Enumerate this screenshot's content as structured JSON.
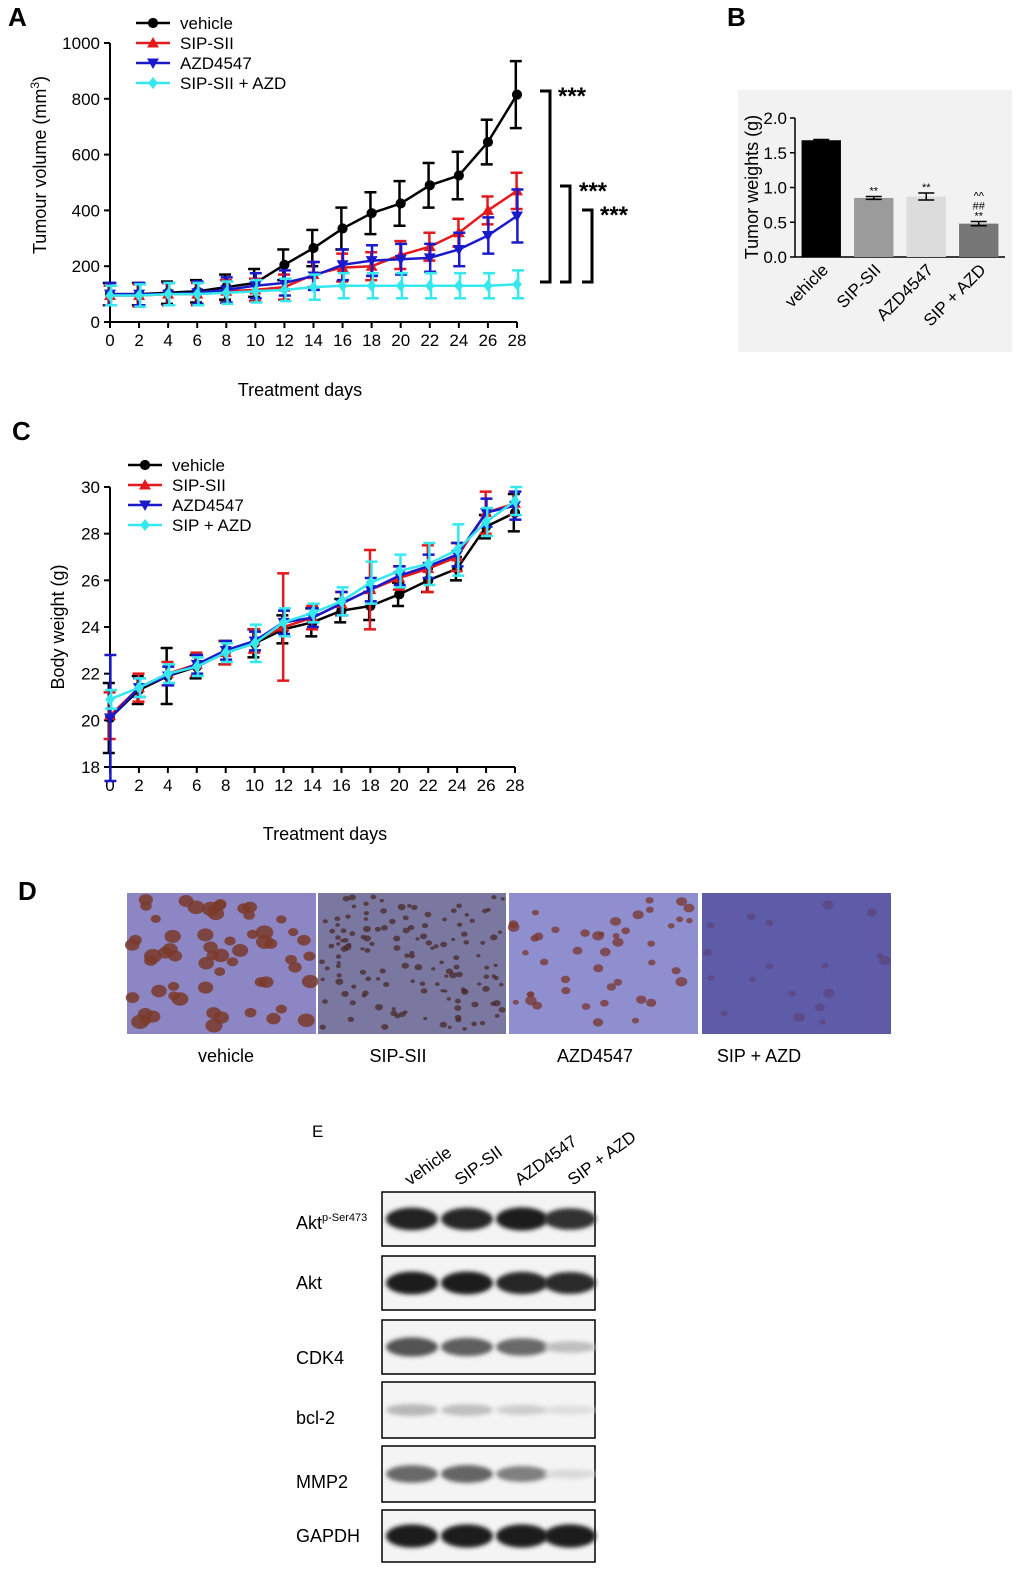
{
  "panels": {
    "A": "A",
    "B": "B",
    "C": "C",
    "D": "D",
    "E": "E"
  },
  "chart_data": [
    {
      "id": "A",
      "type": "line",
      "title": "",
      "xlabel": "Treatment days",
      "ylabel": "Tumour volume (mm",
      "ylabel_sup": "3",
      "ylabel_end": ")",
      "xlim": [
        0,
        28
      ],
      "ylim": [
        0,
        1000
      ],
      "x": [
        0,
        2,
        4,
        6,
        8,
        10,
        12,
        14,
        16,
        18,
        20,
        22,
        24,
        26,
        28
      ],
      "xticks": [
        "0",
        "2",
        "4",
        "6",
        "8",
        "10",
        "12",
        "14",
        "16",
        "18",
        "20",
        "22",
        "24",
        "26",
        "28"
      ],
      "yticks": [
        "0",
        "200",
        "400",
        "600",
        "800",
        "1000"
      ],
      "legend_position": "top-left",
      "series": [
        {
          "name": "vehicle",
          "color": "#000000",
          "marker": "circle",
          "values": [
            100,
            100,
            105,
            110,
            125,
            140,
            205,
            265,
            335,
            390,
            425,
            490,
            525,
            645,
            815
          ],
          "errors": [
            40,
            40,
            40,
            40,
            45,
            50,
            55,
            65,
            75,
            75,
            80,
            80,
            85,
            80,
            120
          ]
        },
        {
          "name": "SIP-SII",
          "color": "#e3191c",
          "marker": "triangle-up",
          "values": [
            95,
            95,
            100,
            100,
            110,
            115,
            125,
            170,
            195,
            200,
            240,
            270,
            320,
            400,
            470
          ],
          "errors": [
            35,
            40,
            40,
            40,
            40,
            40,
            45,
            45,
            50,
            50,
            50,
            50,
            50,
            50,
            65
          ]
        },
        {
          "name": "AZD4547",
          "color": "#1a1acc",
          "marker": "triangle-down",
          "values": [
            100,
            100,
            100,
            105,
            115,
            130,
            140,
            165,
            205,
            220,
            225,
            230,
            260,
            310,
            380
          ],
          "errors": [
            40,
            40,
            40,
            40,
            45,
            45,
            45,
            50,
            55,
            55,
            55,
            50,
            60,
            65,
            95
          ]
        },
        {
          "name": "SIP-SII + AZD",
          "color": "#35e8ee",
          "marker": "diamond",
          "values": [
            95,
            95,
            100,
            100,
            105,
            110,
            115,
            125,
            130,
            130,
            130,
            130,
            130,
            130,
            135
          ],
          "errors": [
            35,
            40,
            40,
            40,
            40,
            40,
            40,
            45,
            45,
            45,
            45,
            45,
            45,
            45,
            50
          ]
        }
      ],
      "significance": [
        "***",
        "***",
        "***"
      ]
    },
    {
      "id": "B",
      "type": "bar",
      "title": "",
      "xlabel": "",
      "ylabel": "Tumor weights (g)",
      "ylim": [
        0,
        2.0
      ],
      "yticks": [
        "0.0",
        "0.5",
        "1.0",
        "1.5",
        "2.0"
      ],
      "categories": [
        "vehicle",
        "SIP-SII",
        "AZD4547",
        "SIP + AZD"
      ],
      "values": [
        1.68,
        0.85,
        0.87,
        0.48
      ],
      "errors": [
        0.01,
        0.02,
        0.05,
        0.03
      ],
      "colors": [
        "#000000",
        "#9b9b9b",
        "#dcdcdc",
        "#777777"
      ],
      "annotations": [
        [],
        [
          "**"
        ],
        [
          "**"
        ],
        [
          "**",
          "##",
          "^^"
        ]
      ]
    },
    {
      "id": "C",
      "type": "line",
      "title": "",
      "xlabel": "Treatment days",
      "ylabel": "Body weight (g)",
      "xlim": [
        0,
        28
      ],
      "ylim": [
        18,
        30
      ],
      "x": [
        0,
        2,
        4,
        6,
        8,
        10,
        12,
        14,
        16,
        18,
        20,
        22,
        24,
        26,
        28
      ],
      "xticks": [
        "0",
        "2",
        "4",
        "6",
        "8",
        "10",
        "12",
        "14",
        "16",
        "18",
        "20",
        "22",
        "24",
        "26",
        "28"
      ],
      "yticks": [
        "18",
        "20",
        "22",
        "24",
        "26",
        "28",
        "30"
      ],
      "legend_position": "top-left",
      "series": [
        {
          "name": "vehicle",
          "color": "#000000",
          "marker": "circle",
          "values": [
            20.1,
            21.3,
            21.9,
            22.3,
            22.9,
            23.3,
            23.9,
            24.2,
            24.7,
            24.9,
            25.4,
            26.0,
            26.5,
            28.3,
            28.9
          ],
          "errors": [
            1.5,
            0.6,
            1.2,
            0.5,
            0.5,
            0.6,
            0.6,
            0.6,
            0.5,
            0.6,
            0.5,
            0.5,
            0.5,
            0.5,
            0.8
          ]
        },
        {
          "name": "SIP-SII",
          "color": "#e3191c",
          "marker": "triangle-up",
          "values": [
            20.2,
            21.4,
            22.0,
            22.4,
            22.9,
            23.4,
            24.0,
            24.4,
            25.0,
            25.6,
            26.1,
            26.5,
            27.0,
            28.9,
            29.3
          ],
          "errors": [
            1.0,
            0.6,
            0.5,
            0.5,
            0.5,
            0.5,
            2.3,
            0.5,
            0.5,
            1.7,
            0.5,
            1.0,
            0.6,
            0.9,
            0.5
          ]
        },
        {
          "name": "AZD4547",
          "color": "#1a1acc",
          "marker": "triangle-down",
          "values": [
            20.1,
            21.4,
            21.9,
            22.4,
            23.0,
            23.4,
            24.2,
            24.4,
            25.0,
            25.6,
            26.2,
            26.6,
            27.1,
            28.9,
            29.2
          ],
          "errors": [
            2.7,
            0.4,
            0.4,
            0.4,
            0.4,
            0.4,
            0.5,
            0.4,
            0.5,
            0.5,
            0.4,
            0.5,
            0.5,
            0.6,
            0.6
          ]
        },
        {
          "name": "SIP + AZD",
          "color": "#35e8ee",
          "marker": "diamond",
          "values": [
            20.9,
            21.4,
            22.0,
            22.3,
            22.9,
            23.3,
            24.2,
            24.6,
            25.1,
            25.9,
            26.4,
            26.7,
            27.3,
            28.5,
            29.4
          ],
          "errors": [
            0.4,
            0.4,
            0.4,
            0.4,
            0.4,
            0.8,
            0.6,
            0.4,
            0.6,
            0.9,
            0.7,
            0.9,
            1.1,
            0.6,
            0.6
          ]
        }
      ]
    }
  ],
  "ihc": {
    "labels": [
      "vehicle",
      "SIP-SII",
      "AZD4547",
      "SIP + AZD"
    ]
  },
  "western": {
    "lanes": [
      "vehicle",
      "SIP-SII",
      "AZD4547",
      "SIP + AZD"
    ],
    "akt_p_main": "Akt",
    "akt_p_sup": "p-Ser473",
    "rows": [
      "Akt",
      "CDK4",
      "bcl-2",
      "MMP2",
      "GAPDH"
    ],
    "band_intensity": {
      "Akt p-Ser473": [
        0.92,
        0.9,
        0.95,
        0.85
      ],
      "Akt": [
        0.93,
        0.93,
        0.9,
        0.88
      ],
      "CDK4": [
        0.7,
        0.65,
        0.6,
        0.22
      ],
      "bcl-2": [
        0.25,
        0.22,
        0.15,
        0.08
      ],
      "MMP2": [
        0.6,
        0.62,
        0.5,
        0.1
      ],
      "GAPDH": [
        0.95,
        0.95,
        0.95,
        0.95
      ]
    }
  }
}
